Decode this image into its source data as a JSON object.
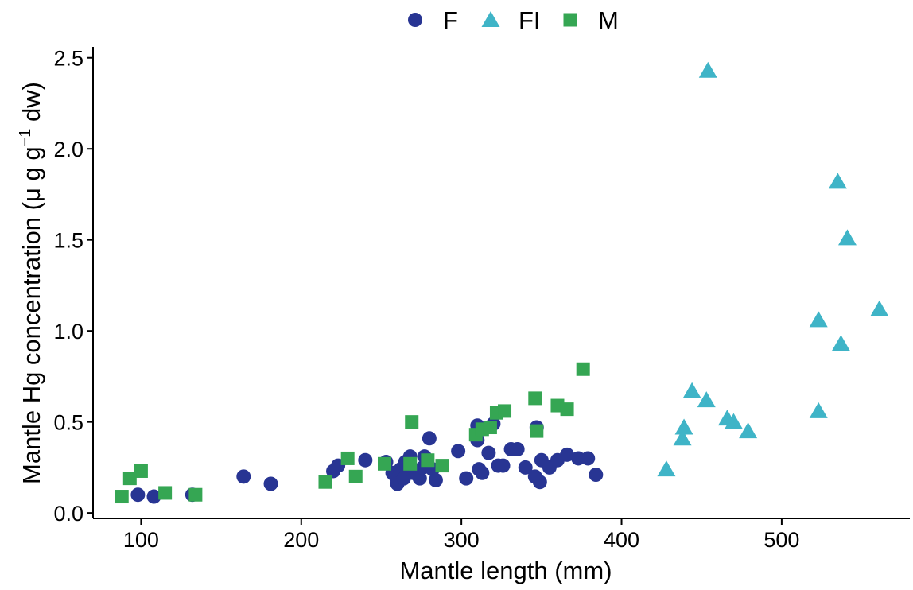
{
  "chart_data": {
    "type": "scatter",
    "title": "",
    "xlabel": "Mantle length (mm)",
    "ylabel_main": "Mantle Hg concentration (",
    "ylabel_units_prefix": "μ g g",
    "ylabel_superscript": "−1",
    "ylabel_units_suffix": " dw)",
    "xlim": [
      70,
      580
    ],
    "ylim": [
      -0.03,
      2.56
    ],
    "xticks": [
      100,
      200,
      300,
      400,
      500
    ],
    "yticks": [
      0.0,
      0.5,
      1.0,
      1.5,
      2.0,
      2.5
    ],
    "xtick_labels": [
      "100",
      "200",
      "300",
      "400",
      "500"
    ],
    "ytick_labels": [
      "0.0",
      "0.5",
      "1.0",
      "1.5",
      "2.0",
      "2.5"
    ],
    "grid": false,
    "legend_position": "top",
    "series": [
      {
        "name": "F",
        "marker": "circle",
        "color": "#283593",
        "points": [
          [
            98,
            0.1
          ],
          [
            108,
            0.09
          ],
          [
            132,
            0.1
          ],
          [
            164,
            0.2
          ],
          [
            181,
            0.16
          ],
          [
            220,
            0.23
          ],
          [
            223,
            0.26
          ],
          [
            240,
            0.29
          ],
          [
            253,
            0.28
          ],
          [
            257,
            0.22
          ],
          [
            259,
            0.2
          ],
          [
            260,
            0.16
          ],
          [
            262,
            0.24
          ],
          [
            264,
            0.19
          ],
          [
            265,
            0.28
          ],
          [
            268,
            0.31
          ],
          [
            270,
            0.22
          ],
          [
            274,
            0.19
          ],
          [
            276,
            0.25
          ],
          [
            277,
            0.31
          ],
          [
            280,
            0.41
          ],
          [
            282,
            0.24
          ],
          [
            284,
            0.18
          ],
          [
            298,
            0.34
          ],
          [
            303,
            0.19
          ],
          [
            310,
            0.48
          ],
          [
            310,
            0.4
          ],
          [
            311,
            0.24
          ],
          [
            313,
            0.22
          ],
          [
            317,
            0.33
          ],
          [
            320,
            0.49
          ],
          [
            323,
            0.26
          ],
          [
            326,
            0.26
          ],
          [
            331,
            0.35
          ],
          [
            335,
            0.35
          ],
          [
            340,
            0.25
          ],
          [
            346,
            0.2
          ],
          [
            347,
            0.47
          ],
          [
            349,
            0.17
          ],
          [
            350,
            0.29
          ],
          [
            355,
            0.25
          ],
          [
            360,
            0.29
          ],
          [
            366,
            0.32
          ],
          [
            373,
            0.3
          ],
          [
            379,
            0.3
          ],
          [
            384,
            0.21
          ]
        ]
      },
      {
        "name": "FI",
        "marker": "triangle",
        "color": "#3fb4c7",
        "points": [
          [
            428,
            0.24
          ],
          [
            438,
            0.41
          ],
          [
            439,
            0.47
          ],
          [
            444,
            0.67
          ],
          [
            453,
            0.62
          ],
          [
            454,
            2.43
          ],
          [
            466,
            0.52
          ],
          [
            470,
            0.5
          ],
          [
            479,
            0.45
          ],
          [
            523,
            1.06
          ],
          [
            523,
            0.56
          ],
          [
            535,
            1.82
          ],
          [
            537,
            0.93
          ],
          [
            541,
            1.51
          ],
          [
            561,
            1.12
          ]
        ]
      },
      {
        "name": "M",
        "marker": "square",
        "color": "#35a653",
        "points": [
          [
            88,
            0.09
          ],
          [
            93,
            0.19
          ],
          [
            100,
            0.23
          ],
          [
            115,
            0.11
          ],
          [
            134,
            0.1
          ],
          [
            215,
            0.17
          ],
          [
            229,
            0.3
          ],
          [
            234,
            0.2
          ],
          [
            252,
            0.27
          ],
          [
            268,
            0.27
          ],
          [
            269,
            0.5
          ],
          [
            279,
            0.29
          ],
          [
            288,
            0.26
          ],
          [
            309,
            0.43
          ],
          [
            313,
            0.46
          ],
          [
            318,
            0.47
          ],
          [
            322,
            0.55
          ],
          [
            327,
            0.56
          ],
          [
            346,
            0.63
          ],
          [
            347,
            0.45
          ],
          [
            360,
            0.59
          ],
          [
            366,
            0.57
          ],
          [
            376,
            0.79
          ]
        ]
      }
    ]
  }
}
